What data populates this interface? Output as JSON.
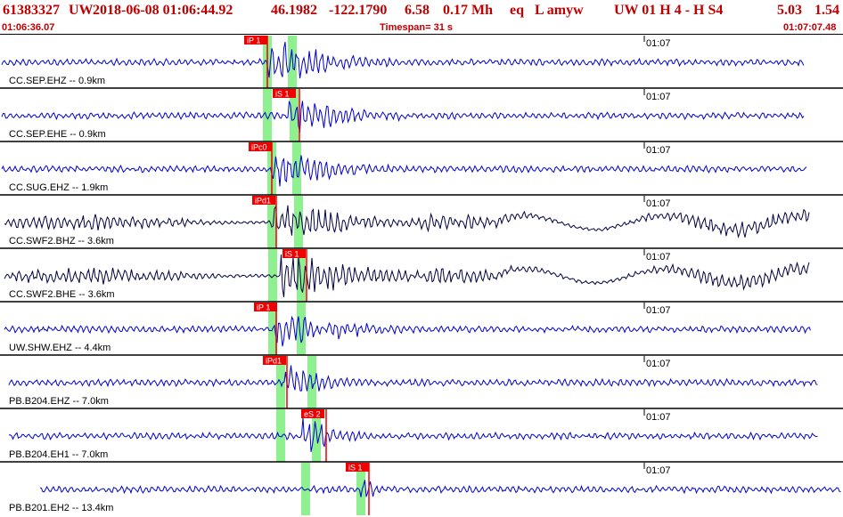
{
  "header": {
    "event_id": "61383327",
    "network": "UW",
    "datetime": "2018-06-08 01:06:44.92",
    "lat": "46.1982",
    "lon": "-122.1790",
    "depth": "6.58",
    "magnitude": "0.17 Mh",
    "event_type": "eq",
    "flags": "L amyw",
    "solution": "UW 01  H   4  -  H S4",
    "v1": "5.03",
    "v2": "1.54"
  },
  "subheader": {
    "start_time": "01:06:36.07",
    "timespan": "Timespan=  31 s",
    "end_time": "01:07:07.48"
  },
  "colors": {
    "accent": "#c00000",
    "trace_blue": "#0000cc",
    "trace_black": "#000040",
    "pick_box": "#ee0000",
    "pick_band": "#8ef08e"
  },
  "minute_mark": "01:07",
  "traces": [
    {
      "label": "CC.SEP.EHZ -- 0.9km",
      "pick": "iP 1",
      "color": "blue"
    },
    {
      "label": "CC.SEP.EHE -- 0.9km",
      "pick": "iS 1",
      "color": "blue"
    },
    {
      "label": "CC.SUG.EHZ -- 1.9km",
      "pick": "iPc0",
      "color": "blue"
    },
    {
      "label": "CC.SWF2.BHZ -- 3.6km",
      "pick": "iPd1",
      "color": "black"
    },
    {
      "label": "CC.SWF2.BHE -- 3.6km",
      "pick": "iS 1",
      "color": "black"
    },
    {
      "label": "UW.SHW.EHZ -- 4.4km",
      "pick": "iP 1",
      "color": "blue"
    },
    {
      "label": "PB.B204.EHZ -- 7.0km",
      "pick": "iPd1",
      "color": "blue"
    },
    {
      "label": "PB.B204.EH1 -- 7.0km",
      "pick": "eS 2",
      "color": "blue"
    },
    {
      "label": "PB.B201.EH2 -- 13.4km",
      "pick": "iS 1",
      "color": "blue"
    }
  ]
}
